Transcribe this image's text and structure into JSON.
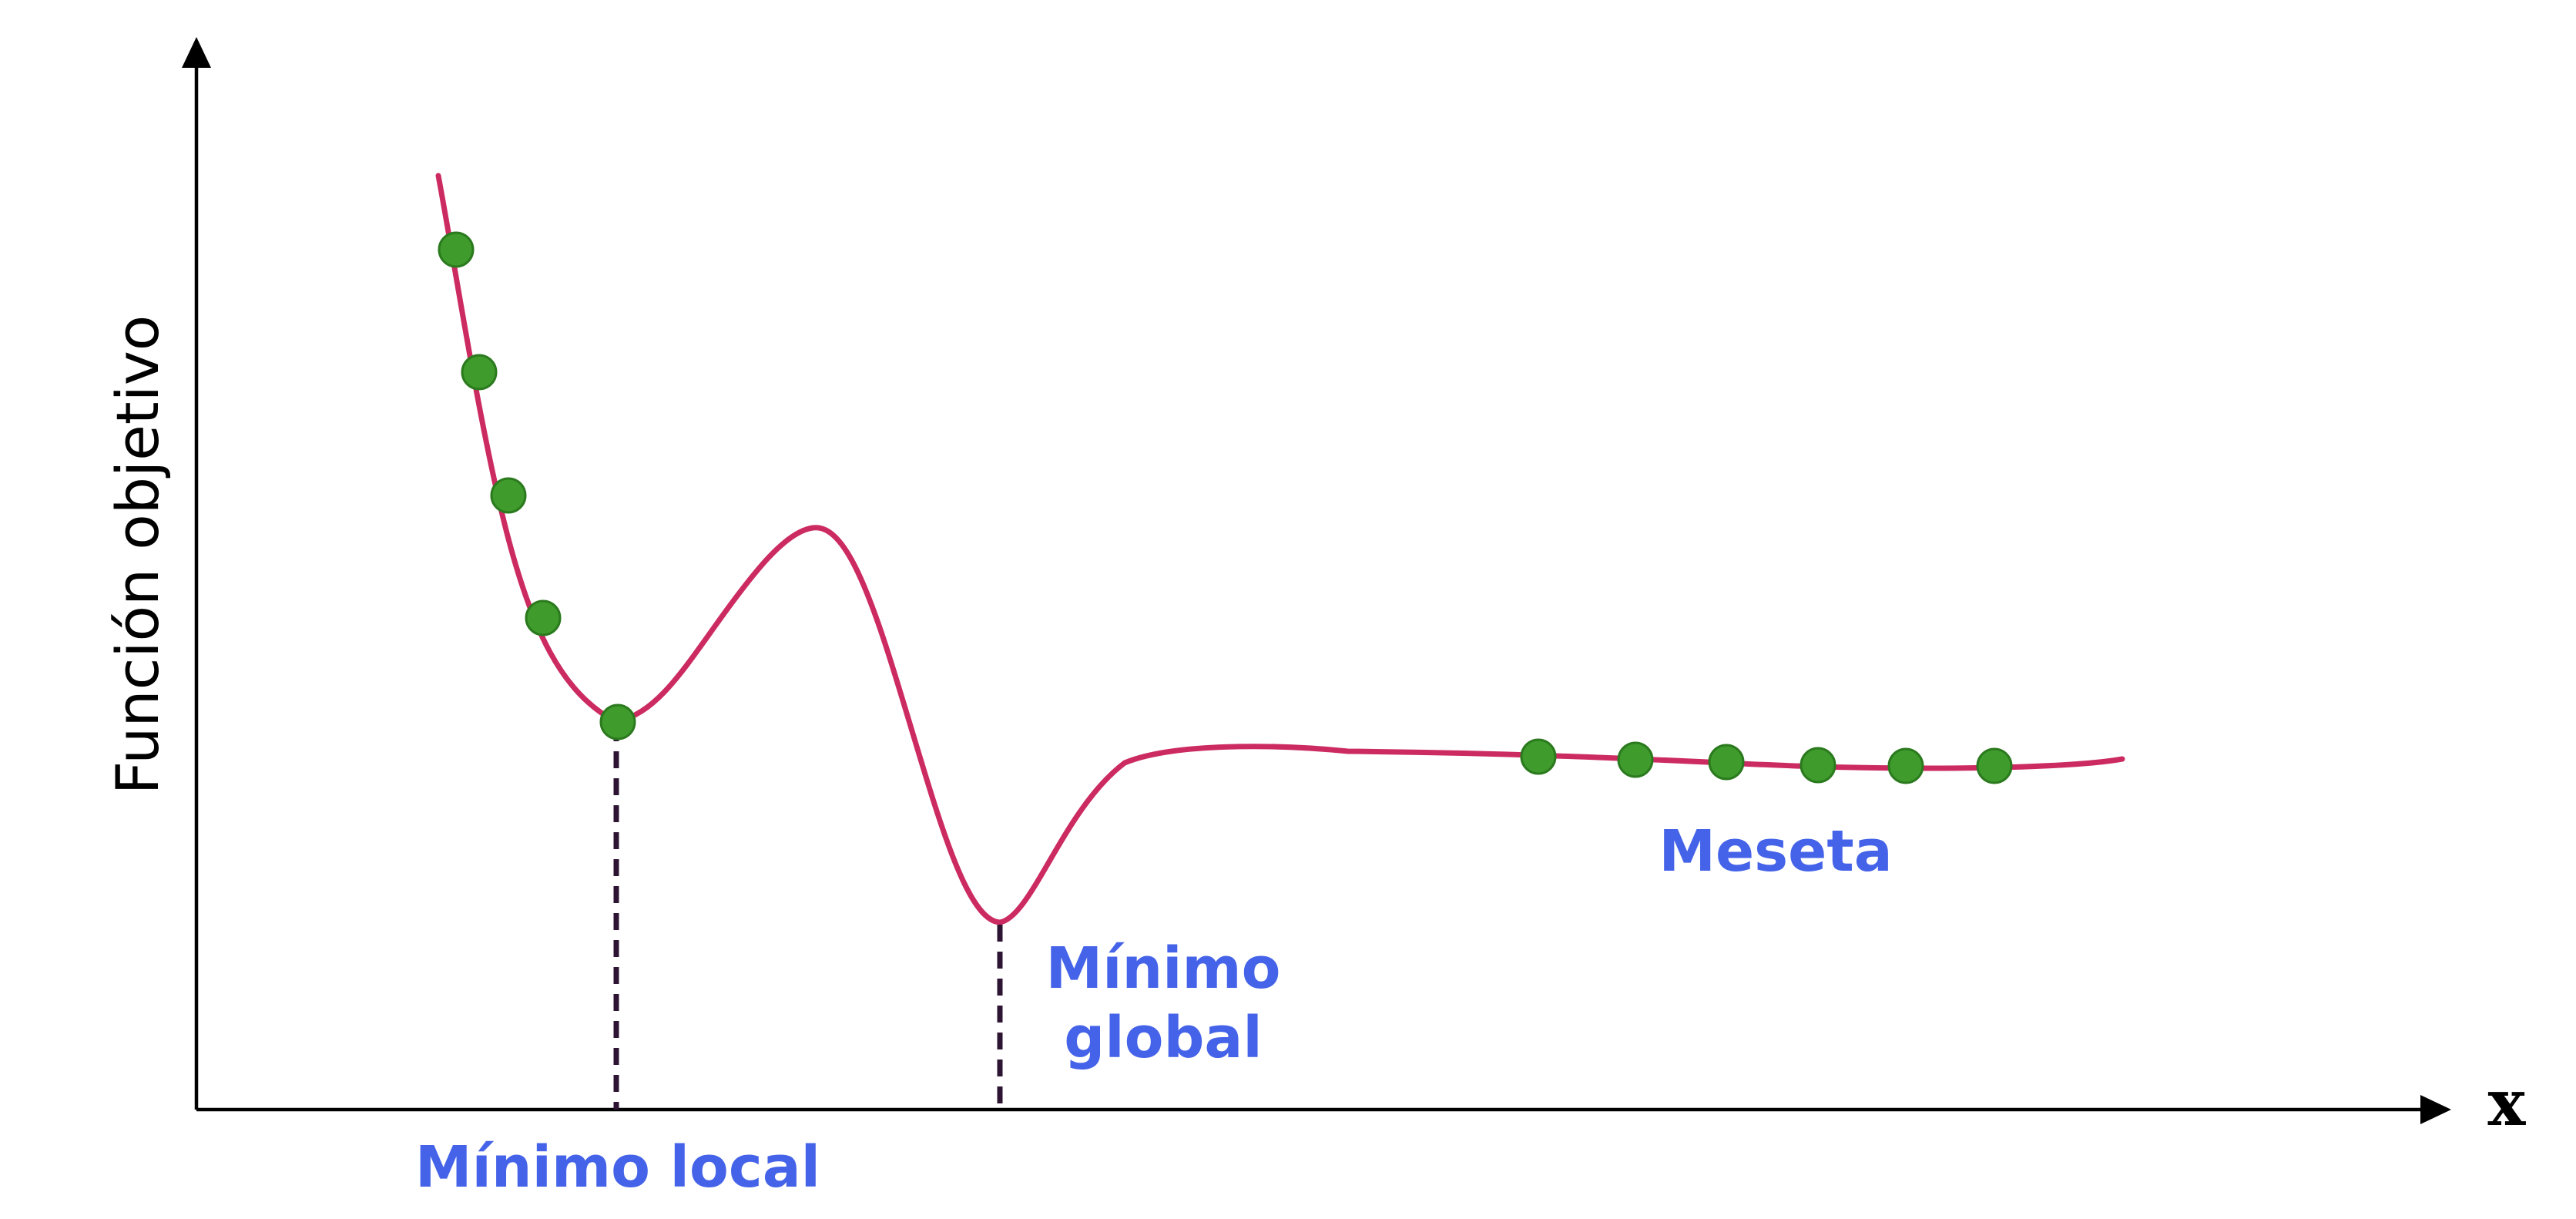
{
  "axes": {
    "y_label": "Función objetivo",
    "x_label": "x"
  },
  "annotations": {
    "local_minimum": "Mínimo local",
    "global_minimum_line1": "Mínimo",
    "global_minimum_line2": "global",
    "plateau": "Meseta"
  },
  "colors": {
    "curve": "#cc2b62",
    "marker_fill": "#3e9b2c",
    "marker_stroke": "#2b7a1e",
    "annotation": "#4563e8",
    "drop_line": "#2d1432",
    "axis": "#000000"
  }
}
